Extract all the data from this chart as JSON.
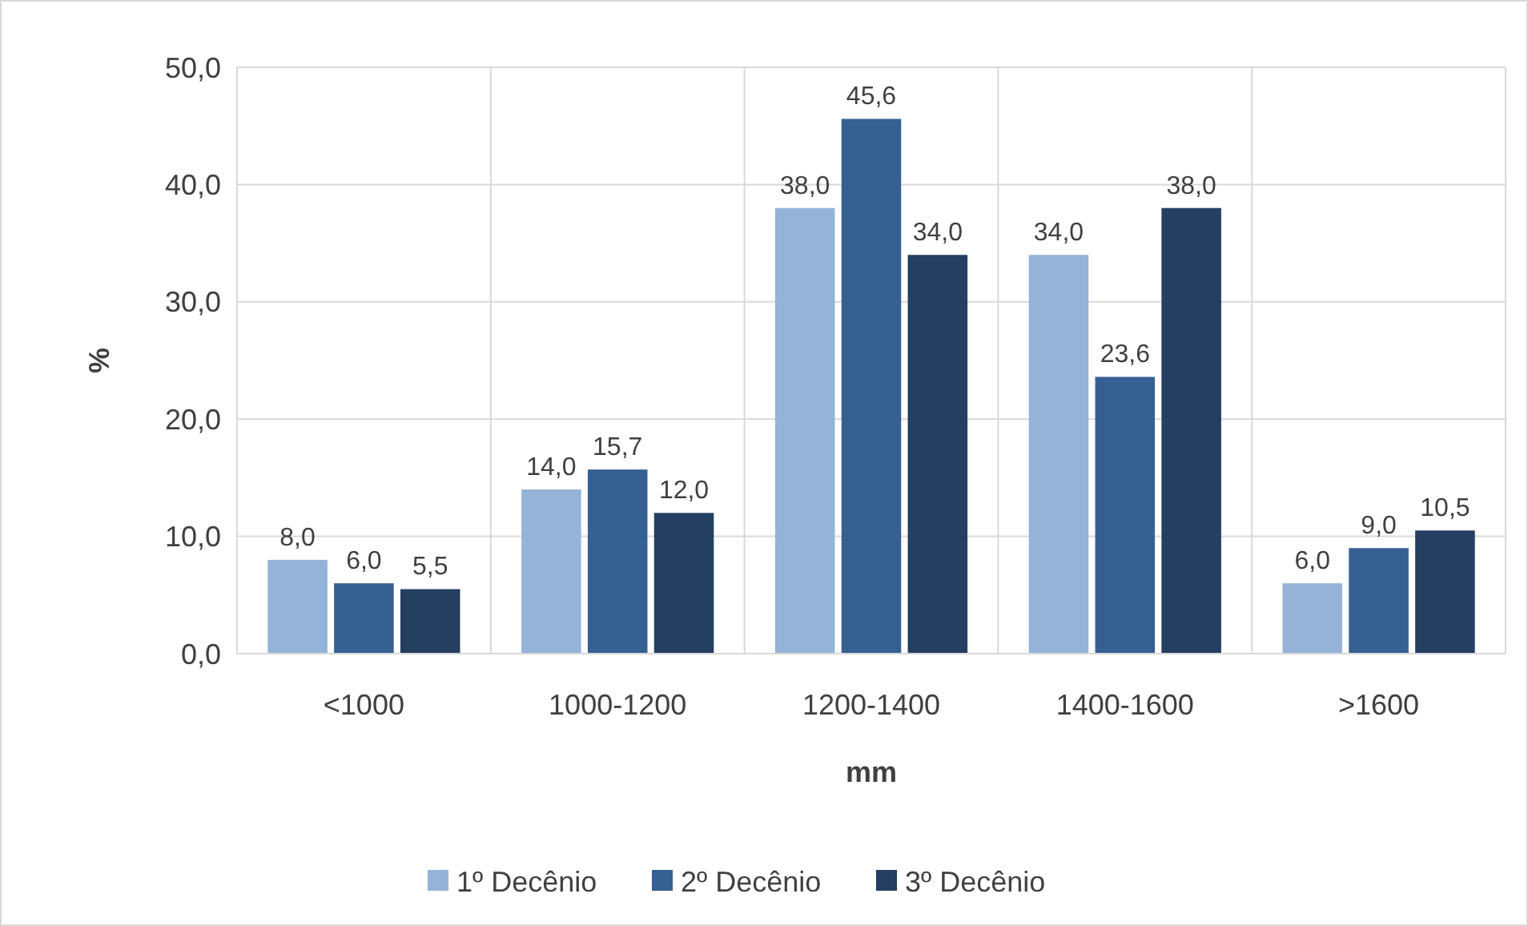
{
  "chart_data": {
    "type": "bar",
    "xlabel": "mm",
    "ylabel": "%",
    "categories": [
      "<1000",
      "1000-1200",
      "1200-1400",
      "1400-1600",
      ">1600"
    ],
    "series": [
      {
        "name": "1º Decênio",
        "color": "#95b3d7",
        "values": [
          8.0,
          14.0,
          38.0,
          34.0,
          6.0
        ],
        "value_labels": [
          "8,0",
          "14,0",
          "38,0",
          "34,0",
          "6,0"
        ]
      },
      {
        "name": "2º Decênio",
        "color": "#366092",
        "values": [
          6.0,
          15.7,
          45.6,
          23.6,
          9.0
        ],
        "value_labels": [
          "6,0",
          "15,7",
          "45,6",
          "23,6",
          "9,0"
        ]
      },
      {
        "name": "3º Decênio",
        "color": "#243f60",
        "values": [
          5.5,
          12.0,
          34.0,
          38.0,
          10.5
        ],
        "value_labels": [
          "5,5",
          "12,0",
          "34,0",
          "38,0",
          "10,5"
        ]
      }
    ],
    "ylim": [
      0,
      50
    ],
    "yticks": [
      {
        "value": 0,
        "label": "0,0"
      },
      {
        "value": 10,
        "label": "10,0"
      },
      {
        "value": 20,
        "label": "20,0"
      },
      {
        "value": 30,
        "label": "30,0"
      },
      {
        "value": 40,
        "label": "40,0"
      },
      {
        "value": 50,
        "label": "50,0"
      }
    ],
    "grid": true,
    "legend": "bottom"
  }
}
